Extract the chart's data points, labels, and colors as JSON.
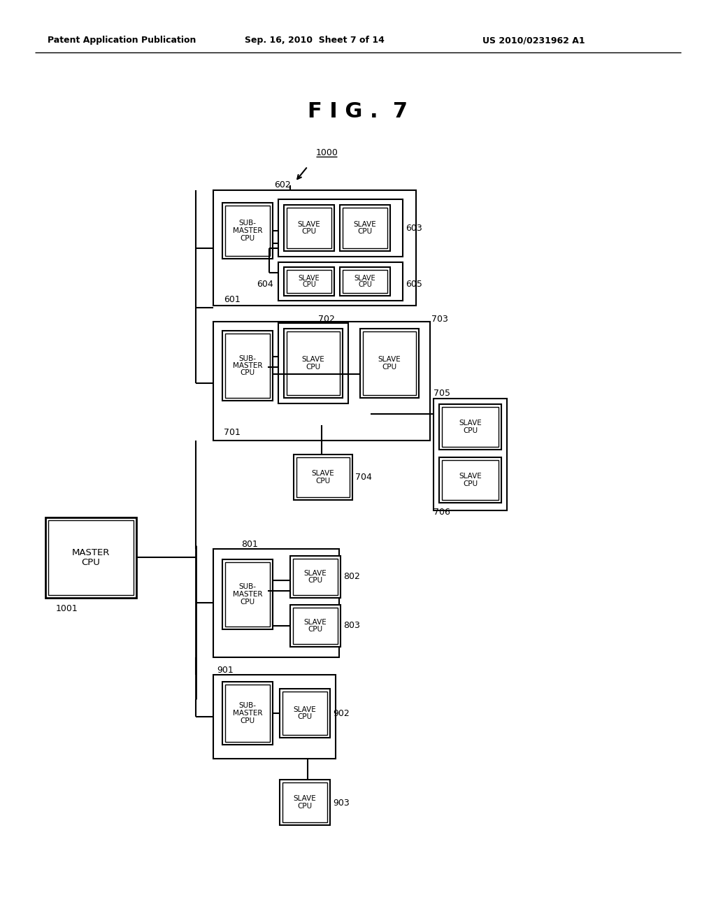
{
  "title": "F I G .  7",
  "header_left": "Patent Application Publication",
  "header_mid": "Sep. 16, 2010  Sheet 7 of 14",
  "header_right": "US 2010/0231962 A1",
  "bg_color": "#ffffff"
}
